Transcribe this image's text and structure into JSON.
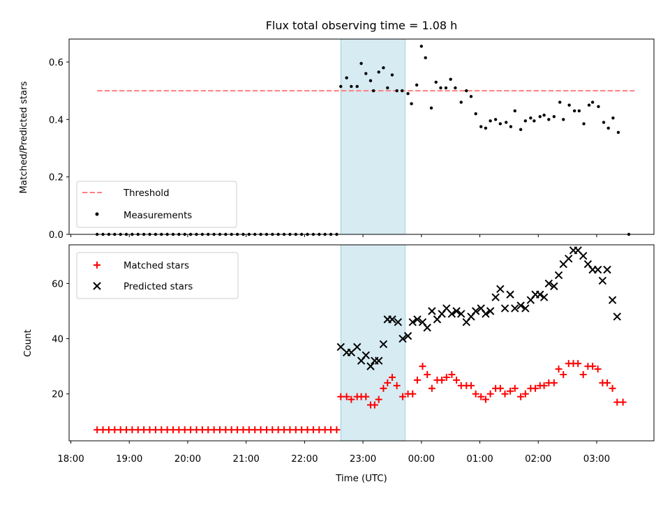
{
  "chart_data": {
    "title": "Flux total observing time = 1.08 h",
    "xlabel": "Time (UTC)",
    "x_unit": "hours (UTC, past midnight continues beyond 24)",
    "x_ticks": [
      {
        "value": 18,
        "label": "18:00"
      },
      {
        "value": 19,
        "label": "19:00"
      },
      {
        "value": 20,
        "label": "20:00"
      },
      {
        "value": 21,
        "label": "21:00"
      },
      {
        "value": 22,
        "label": "22:00"
      },
      {
        "value": 23,
        "label": "23:00"
      },
      {
        "value": 24,
        "label": "00:00"
      },
      {
        "value": 25,
        "label": "01:00"
      },
      {
        "value": 26,
        "label": "02:00"
      },
      {
        "value": 27,
        "label": "03:00"
      }
    ],
    "xlim": [
      17.97,
      27.98
    ],
    "highlight_span": {
      "start": 22.62,
      "end": 23.72,
      "color": "#add8e6"
    },
    "top": {
      "type": "scatter",
      "ylabel": "Matched/Predicted stars",
      "ylim": [
        0,
        0.68
      ],
      "y_ticks": [
        "0.0",
        "0.2",
        "0.4",
        "0.6"
      ],
      "legend": {
        "position": "lower-left",
        "threshold_label": "Threshold",
        "measurements_label": "Measurements"
      },
      "threshold": {
        "y": 0.5,
        "x_start": 18.45,
        "x_end": 27.65,
        "color": "#ff7f7f"
      },
      "zero_series": {
        "x_start": 18.45,
        "x_end": 22.55,
        "step": 0.1,
        "y": 0
      },
      "final_zero_x": 27.55,
      "measurements": [
        [
          22.62,
          0.515
        ],
        [
          22.72,
          0.545
        ],
        [
          22.8,
          0.515
        ],
        [
          22.9,
          0.515
        ],
        [
          22.97,
          0.595
        ],
        [
          23.05,
          0.56
        ],
        [
          23.13,
          0.535
        ],
        [
          23.18,
          0.5
        ],
        [
          23.27,
          0.565
        ],
        [
          23.35,
          0.58
        ],
        [
          23.42,
          0.51
        ],
        [
          23.5,
          0.555
        ],
        [
          23.58,
          0.5
        ],
        [
          23.67,
          0.5
        ],
        [
          23.77,
          0.49
        ],
        [
          23.83,
          0.455
        ],
        [
          23.92,
          0.52
        ],
        [
          24.0,
          0.655
        ],
        [
          24.07,
          0.615
        ],
        [
          24.17,
          0.44
        ],
        [
          24.25,
          0.53
        ],
        [
          24.33,
          0.51
        ],
        [
          24.42,
          0.51
        ],
        [
          24.5,
          0.54
        ],
        [
          24.58,
          0.51
        ],
        [
          24.68,
          0.46
        ],
        [
          24.77,
          0.5
        ],
        [
          24.85,
          0.48
        ],
        [
          24.93,
          0.42
        ],
        [
          25.02,
          0.375
        ],
        [
          25.1,
          0.37
        ],
        [
          25.18,
          0.395
        ],
        [
          25.27,
          0.4
        ],
        [
          25.35,
          0.385
        ],
        [
          25.45,
          0.39
        ],
        [
          25.53,
          0.375
        ],
        [
          25.6,
          0.43
        ],
        [
          25.7,
          0.365
        ],
        [
          25.78,
          0.395
        ],
        [
          25.87,
          0.405
        ],
        [
          25.93,
          0.395
        ],
        [
          26.03,
          0.41
        ],
        [
          26.1,
          0.415
        ],
        [
          26.18,
          0.4
        ],
        [
          26.27,
          0.41
        ],
        [
          26.37,
          0.46
        ],
        [
          26.43,
          0.4
        ],
        [
          26.53,
          0.45
        ],
        [
          26.62,
          0.43
        ],
        [
          26.7,
          0.43
        ],
        [
          26.78,
          0.385
        ],
        [
          26.87,
          0.45
        ],
        [
          26.93,
          0.46
        ],
        [
          27.03,
          0.445
        ],
        [
          27.12,
          0.39
        ],
        [
          27.2,
          0.37
        ],
        [
          27.28,
          0.405
        ],
        [
          27.37,
          0.355
        ]
      ]
    },
    "bottom": {
      "type": "scatter",
      "ylabel": "Count",
      "ylim": [
        3,
        74
      ],
      "y_ticks": [
        "20",
        "40",
        "60"
      ],
      "legend": {
        "position": "upper-left",
        "matched_label": "Matched stars",
        "predicted_label": "Predicted stars"
      },
      "matched_const": {
        "x_start": 18.45,
        "x_end": 22.55,
        "step": 0.1,
        "y": 7
      },
      "matched": [
        [
          22.62,
          19
        ],
        [
          22.72,
          19
        ],
        [
          22.8,
          18
        ],
        [
          22.9,
          19
        ],
        [
          22.97,
          19
        ],
        [
          23.05,
          19
        ],
        [
          23.13,
          16
        ],
        [
          23.2,
          16
        ],
        [
          23.27,
          18
        ],
        [
          23.35,
          22
        ],
        [
          23.42,
          24
        ],
        [
          23.5,
          26
        ],
        [
          23.58,
          23
        ],
        [
          23.68,
          19
        ],
        [
          23.77,
          20
        ],
        [
          23.85,
          20
        ],
        [
          23.93,
          25
        ],
        [
          24.02,
          30
        ],
        [
          24.1,
          27
        ],
        [
          24.18,
          22
        ],
        [
          24.27,
          25
        ],
        [
          24.35,
          25
        ],
        [
          24.43,
          26
        ],
        [
          24.52,
          27
        ],
        [
          24.6,
          25
        ],
        [
          24.68,
          23
        ],
        [
          24.77,
          23
        ],
        [
          24.85,
          23
        ],
        [
          24.93,
          20
        ],
        [
          25.02,
          19
        ],
        [
          25.1,
          18
        ],
        [
          25.18,
          20
        ],
        [
          25.27,
          22
        ],
        [
          25.35,
          22
        ],
        [
          25.43,
          20
        ],
        [
          25.52,
          21
        ],
        [
          25.6,
          22
        ],
        [
          25.7,
          19
        ],
        [
          25.78,
          20
        ],
        [
          25.87,
          22
        ],
        [
          25.95,
          22
        ],
        [
          26.03,
          23
        ],
        [
          26.1,
          23
        ],
        [
          26.18,
          24
        ],
        [
          26.27,
          24
        ],
        [
          26.35,
          29
        ],
        [
          26.43,
          27
        ],
        [
          26.52,
          31
        ],
        [
          26.6,
          31
        ],
        [
          26.68,
          31
        ],
        [
          26.77,
          27
        ],
        [
          26.85,
          30
        ],
        [
          26.93,
          30
        ],
        [
          27.02,
          29
        ],
        [
          27.1,
          24
        ],
        [
          27.18,
          24
        ],
        [
          27.27,
          22
        ],
        [
          27.35,
          17
        ],
        [
          27.45,
          17
        ]
      ],
      "predicted": [
        [
          22.62,
          37
        ],
        [
          22.72,
          35
        ],
        [
          22.8,
          35
        ],
        [
          22.9,
          37
        ],
        [
          22.97,
          32
        ],
        [
          23.05,
          34
        ],
        [
          23.13,
          30
        ],
        [
          23.2,
          32
        ],
        [
          23.27,
          32
        ],
        [
          23.35,
          38
        ],
        [
          23.42,
          47
        ],
        [
          23.5,
          47
        ],
        [
          23.6,
          46
        ],
        [
          23.68,
          40
        ],
        [
          23.77,
          41
        ],
        [
          23.85,
          46
        ],
        [
          23.93,
          47
        ],
        [
          24.02,
          46
        ],
        [
          24.1,
          44
        ],
        [
          24.18,
          50
        ],
        [
          24.27,
          47
        ],
        [
          24.35,
          49
        ],
        [
          24.43,
          51
        ],
        [
          24.52,
          49
        ],
        [
          24.6,
          50
        ],
        [
          24.68,
          49
        ],
        [
          24.77,
          46
        ],
        [
          24.85,
          48
        ],
        [
          24.93,
          50
        ],
        [
          25.02,
          51
        ],
        [
          25.1,
          49
        ],
        [
          25.18,
          50
        ],
        [
          25.27,
          55
        ],
        [
          25.35,
          58
        ],
        [
          25.43,
          51
        ],
        [
          25.52,
          56
        ],
        [
          25.6,
          51
        ],
        [
          25.7,
          52
        ],
        [
          25.78,
          51
        ],
        [
          25.87,
          54
        ],
        [
          25.95,
          56
        ],
        [
          26.03,
          56
        ],
        [
          26.1,
          55
        ],
        [
          26.18,
          60
        ],
        [
          26.27,
          59
        ],
        [
          26.35,
          63
        ],
        [
          26.43,
          67
        ],
        [
          26.52,
          69
        ],
        [
          26.6,
          72
        ],
        [
          26.68,
          72
        ],
        [
          26.77,
          70
        ],
        [
          26.85,
          67
        ],
        [
          26.93,
          65
        ],
        [
          27.02,
          65
        ],
        [
          27.1,
          61
        ],
        [
          27.18,
          65
        ],
        [
          27.27,
          54
        ],
        [
          27.35,
          48
        ]
      ]
    }
  }
}
